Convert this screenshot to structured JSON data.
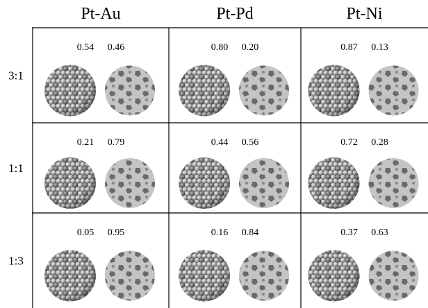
{
  "columns": [
    "Pt-Au",
    "Pt-Pd",
    "Pt-Ni"
  ],
  "rows": [
    {
      "label": "3:1",
      "cells": [
        [
          "0.54",
          "0.46"
        ],
        [
          "0.80",
          "0.20"
        ],
        [
          "0.87",
          "0.13"
        ]
      ]
    },
    {
      "label": "1:1",
      "cells": [
        [
          "0.21",
          "0.79"
        ],
        [
          "0.44",
          "0.56"
        ],
        [
          "0.72",
          "0.28"
        ]
      ]
    },
    {
      "label": "1:3",
      "cells": [
        [
          "0.05",
          "0.95"
        ],
        [
          "0.16",
          "0.84"
        ],
        [
          "0.37",
          "0.63"
        ]
      ]
    }
  ]
}
